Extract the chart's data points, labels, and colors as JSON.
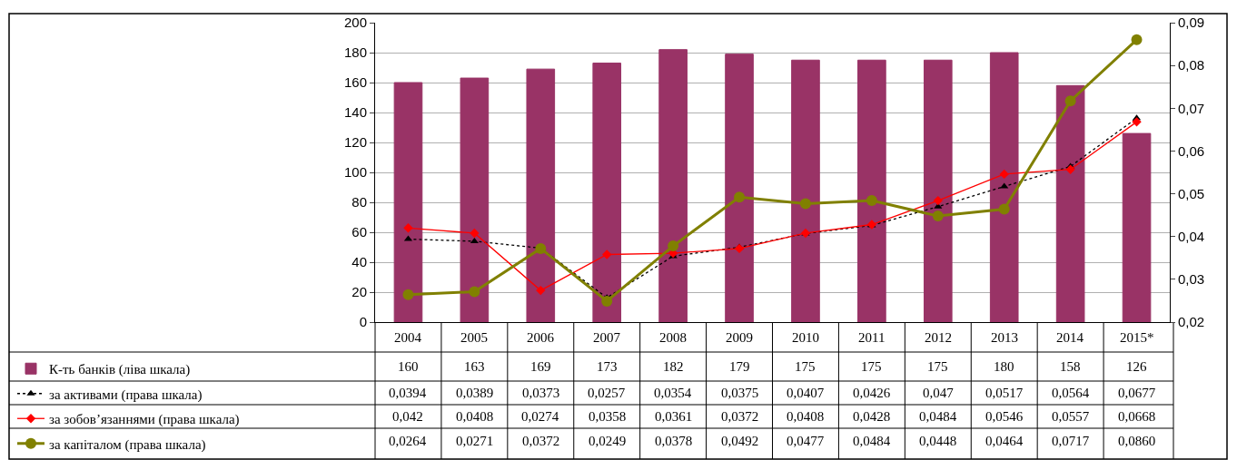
{
  "chart_data": {
    "type": "bar",
    "categories": [
      "2004",
      "2005",
      "2006",
      "2007",
      "2008",
      "2009",
      "2010",
      "2011",
      "2012",
      "2013",
      "2014",
      "2015*"
    ],
    "series": [
      {
        "name": "К-ть банків (ліва шкала)",
        "color": "#993366",
        "values": [
          160,
          163,
          169,
          173,
          182,
          179,
          175,
          175,
          175,
          180,
          158,
          126
        ],
        "value_labels": [
          "160",
          "163",
          "169",
          "173",
          "182",
          "179",
          "175",
          "175",
          "175",
          "180",
          "158",
          "126"
        ]
      },
      {
        "name": "за активами (права шкала)",
        "type": "line",
        "axis": "y2",
        "color": "#000000",
        "marker": "triangle",
        "line_style": "dotted",
        "values": [
          0.0394,
          0.0389,
          0.0373,
          0.0257,
          0.0354,
          0.0375,
          0.0407,
          0.0426,
          0.047,
          0.0517,
          0.0564,
          0.0677
        ],
        "value_labels": [
          "0,0394",
          "0,0389",
          "0,0373",
          "0,0257",
          "0,0354",
          "0,0375",
          "0,0407",
          "0,0426",
          "0,047",
          "0,0517",
          "0,0564",
          "0,0677"
        ]
      },
      {
        "name": "за зобов’язаннями (права шкала)",
        "type": "line",
        "axis": "y2",
        "color": "#ff0000",
        "marker": "diamond",
        "line_style": "solid",
        "values": [
          0.042,
          0.0408,
          0.0274,
          0.0358,
          0.0361,
          0.0372,
          0.0408,
          0.0428,
          0.0484,
          0.0546,
          0.0557,
          0.0668
        ],
        "value_labels": [
          "0,042",
          "0,0408",
          "0,0274",
          "0,0358",
          "0,0361",
          "0,0372",
          "0,0408",
          "0,0428",
          "0,0484",
          "0,0546",
          "0,0557",
          "0,0668"
        ]
      },
      {
        "name": "за капіталом (права шкала)",
        "type": "line",
        "axis": "y2",
        "color": "#808000",
        "marker": "circle",
        "line_style": "solid",
        "values": [
          0.0264,
          0.0271,
          0.0372,
          0.0249,
          0.0378,
          0.0492,
          0.0477,
          0.0484,
          0.0448,
          0.0464,
          0.0717,
          0.086
        ],
        "value_labels": [
          "0,0264",
          "0,0271",
          "0,0372",
          "0,0249",
          "0,0378",
          "0,0492",
          "0,0477",
          "0,0484",
          "0,0448",
          "0,0464",
          "0,0717",
          "0,0860"
        ]
      }
    ],
    "ylim": [
      0,
      200
    ],
    "yticks": [
      0,
      20,
      40,
      60,
      80,
      100,
      120,
      140,
      160,
      180,
      200
    ],
    "y2lim": [
      0.02,
      0.09
    ],
    "y2ticks": [
      {
        "value": 0.02,
        "label": "0,02"
      },
      {
        "value": 0.03,
        "label": "0,03"
      },
      {
        "value": 0.04,
        "label": "0,04"
      },
      {
        "value": 0.05,
        "label": "0,05"
      },
      {
        "value": 0.06,
        "label": "0,06"
      },
      {
        "value": 0.07,
        "label": "0,07"
      },
      {
        "value": 0.08,
        "label": "0,08"
      },
      {
        "value": 0.09,
        "label": "0,09"
      }
    ],
    "grid": "y",
    "legend": "bottom left"
  }
}
